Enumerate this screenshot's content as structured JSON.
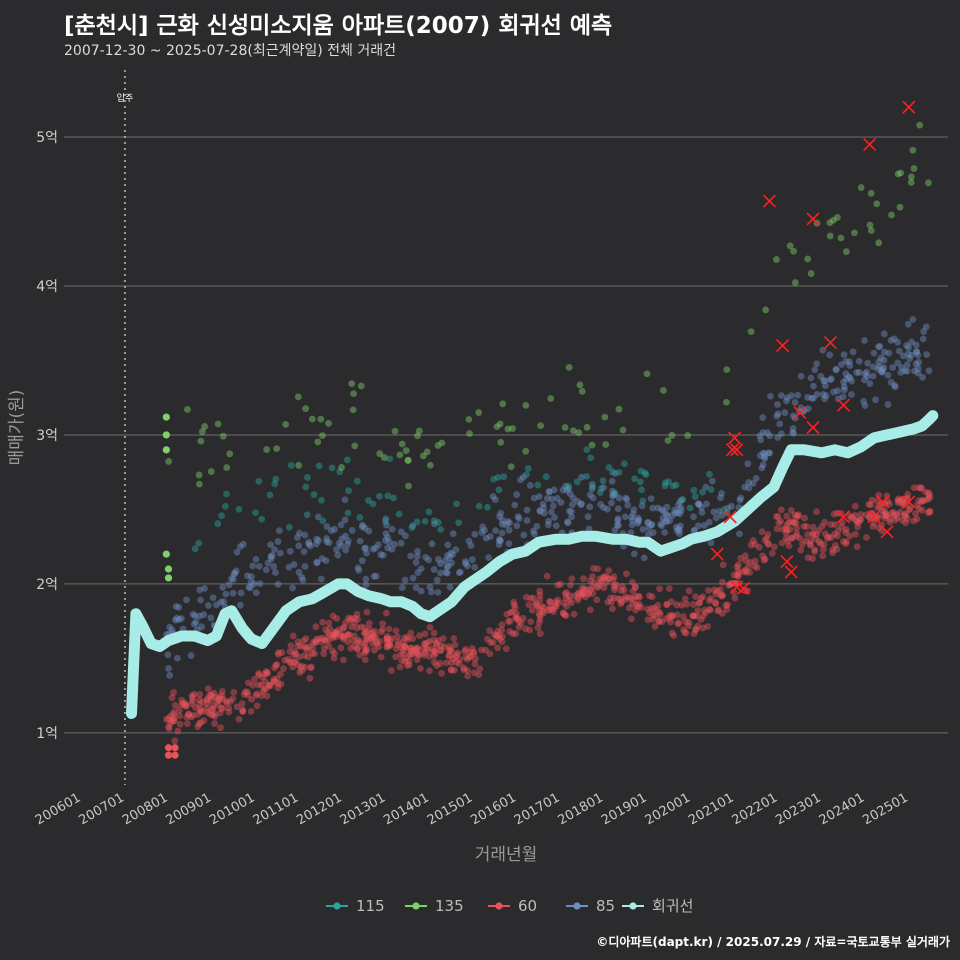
{
  "title": "[춘천시] 근화 신성미소지움 아파트(2007) 회귀선 예측",
  "subtitle": "2007-12-30 ~ 2025-07-28(최근계약일) 전체 거래건",
  "credit": "©디아파트(dapt.kr) / 2025.07.29 / 자료=국토교통부 실거래가",
  "colors": {
    "background": "#2b2b2d",
    "grid": "#6e6e6e",
    "s115": "#2aa6a0",
    "s135": "#7fd16a",
    "s60": "#e8525a",
    "s85": "#6f8fc4",
    "regression": "#a8ece8",
    "marker": "#ff2020"
  },
  "chart_data": {
    "type": "scatter",
    "title": "[춘천시] 근화 신성미소지움 아파트(2007) 회귀선 예측",
    "xlabel": "거래년월",
    "ylabel": "매매가(원)",
    "x_range": [
      2005.6,
      2025.9
    ],
    "ylim": [
      0.65,
      5.45
    ],
    "y_ticks": [
      1,
      2,
      3,
      4,
      5
    ],
    "y_tick_labels": [
      "1억",
      "2억",
      "3억",
      "4억",
      "5억"
    ],
    "x_ticks": [
      2006.0,
      2007.0,
      2008.0,
      2009.0,
      2010.0,
      2011.0,
      2012.0,
      2013.0,
      2014.0,
      2015.0,
      2016.0,
      2017.0,
      2018.0,
      2019.0,
      2020.0,
      2021.0,
      2022.0,
      2023.0,
      2024.0,
      2025.0
    ],
    "x_tick_labels": [
      "200601",
      "200701",
      "200801",
      "200901",
      "201001",
      "201101",
      "201201",
      "201301",
      "201401",
      "201501",
      "201601",
      "201701",
      "201801",
      "201901",
      "202001",
      "202101",
      "202201",
      "202301",
      "202401",
      "202501"
    ],
    "move_in": {
      "x": 2007.0,
      "label": "입주"
    },
    "legend": {
      "position": "bottom",
      "items": [
        "115",
        "135",
        "60",
        "85",
        "회귀선"
      ]
    },
    "series": [
      {
        "name": "115",
        "key": "s115",
        "anchors": [
          [
            2007.95,
            2.45
          ],
          [
            2008.5,
            2.4
          ],
          [
            2010,
            2.5
          ],
          [
            2012,
            2.7
          ],
          [
            2014,
            2.45
          ],
          [
            2016,
            2.7
          ],
          [
            2018,
            2.75
          ],
          [
            2020,
            2.7
          ],
          [
            2020.8,
            2.6
          ]
        ],
        "spread": 0.22,
        "count": 90
      },
      {
        "name": "135",
        "key": "s135",
        "anchors": [
          [
            2007.95,
            2.75
          ],
          [
            2008.6,
            2.85
          ],
          [
            2010,
            2.9
          ],
          [
            2012,
            3.05
          ],
          [
            2014,
            2.9
          ],
          [
            2016,
            3.05
          ],
          [
            2018,
            3.15
          ],
          [
            2020,
            3.1
          ],
          [
            2022,
            4.2
          ],
          [
            2024,
            4.4
          ],
          [
            2025.5,
            4.9
          ]
        ],
        "spread": 0.28,
        "count": 110
      },
      {
        "name": "60",
        "key": "s60",
        "anchors": [
          [
            2007.95,
            1.1
          ],
          [
            2008.7,
            1.15
          ],
          [
            2009.5,
            1.2
          ],
          [
            2010.5,
            1.4
          ],
          [
            2011.5,
            1.6
          ],
          [
            2012.2,
            1.7
          ],
          [
            2013,
            1.6
          ],
          [
            2014,
            1.55
          ],
          [
            2015,
            1.5
          ],
          [
            2016,
            1.75
          ],
          [
            2017,
            1.9
          ],
          [
            2018,
            2.0
          ],
          [
            2019,
            1.85
          ],
          [
            2020,
            1.75
          ],
          [
            2021,
            2.0
          ],
          [
            2022,
            2.4
          ],
          [
            2023,
            2.3
          ],
          [
            2024,
            2.45
          ],
          [
            2025.5,
            2.55
          ]
        ],
        "spread": 0.14,
        "count": 900
      },
      {
        "name": "85",
        "key": "s85",
        "anchors": [
          [
            2007.95,
            1.6
          ],
          [
            2008.7,
            1.8
          ],
          [
            2010,
            2.1
          ],
          [
            2011,
            2.15
          ],
          [
            2012,
            2.3
          ],
          [
            2013,
            2.2
          ],
          [
            2014,
            2.1
          ],
          [
            2015,
            2.2
          ],
          [
            2016,
            2.45
          ],
          [
            2017,
            2.5
          ],
          [
            2018,
            2.55
          ],
          [
            2019,
            2.4
          ],
          [
            2020,
            2.4
          ],
          [
            2021,
            2.55
          ],
          [
            2022,
            3.1
          ],
          [
            2023,
            3.4
          ],
          [
            2024,
            3.45
          ],
          [
            2025.5,
            3.55
          ]
        ],
        "spread": 0.22,
        "count": 560
      }
    ],
    "regression": {
      "name": "회귀선",
      "x": [
        2007.15,
        2007.25,
        2007.4,
        2007.6,
        2007.8,
        2008.0,
        2008.3,
        2008.6,
        2008.9,
        2009.1,
        2009.3,
        2009.45,
        2009.7,
        2009.9,
        2010.15,
        2010.4,
        2010.7,
        2011.0,
        2011.3,
        2011.6,
        2011.9,
        2012.1,
        2012.35,
        2012.6,
        2012.9,
        2013.1,
        2013.35,
        2013.6,
        2013.8,
        2014.0,
        2014.2,
        2014.5,
        2014.8,
        2015.0,
        2015.3,
        2015.6,
        2015.9,
        2016.2,
        2016.5,
        2016.9,
        2017.2,
        2017.5,
        2017.8,
        2018.2,
        2018.5,
        2018.8,
        2019.0,
        2019.3,
        2019.6,
        2019.8,
        2020.0,
        2020.3,
        2020.6,
        2021.0,
        2021.3,
        2021.6,
        2021.9,
        2022.1,
        2022.3,
        2022.6,
        2023.0,
        2023.3,
        2023.6,
        2023.9,
        2024.2,
        2024.5,
        2024.8,
        2025.1,
        2025.3,
        2025.45,
        2025.55
      ],
      "y": [
        1.13,
        1.8,
        1.72,
        1.6,
        1.58,
        1.62,
        1.65,
        1.65,
        1.62,
        1.65,
        1.8,
        1.82,
        1.7,
        1.63,
        1.6,
        1.7,
        1.82,
        1.88,
        1.9,
        1.95,
        2.0,
        2.0,
        1.95,
        1.92,
        1.9,
        1.88,
        1.88,
        1.85,
        1.8,
        1.78,
        1.82,
        1.88,
        1.98,
        2.02,
        2.08,
        2.15,
        2.2,
        2.22,
        2.28,
        2.3,
        2.3,
        2.32,
        2.32,
        2.3,
        2.3,
        2.28,
        2.28,
        2.22,
        2.25,
        2.27,
        2.3,
        2.32,
        2.35,
        2.42,
        2.5,
        2.58,
        2.65,
        2.78,
        2.9,
        2.9,
        2.88,
        2.9,
        2.88,
        2.92,
        2.98,
        3.0,
        3.02,
        3.04,
        3.06,
        3.1,
        3.13
      ]
    },
    "highlighted_x_markers": [
      [
        2020.6,
        2.2
      ],
      [
        2020.9,
        2.45
      ],
      [
        2020.95,
        2.9
      ],
      [
        2021.0,
        2.98
      ],
      [
        2021.05,
        2.9
      ],
      [
        2021.05,
        1.98
      ],
      [
        2021.2,
        1.97
      ],
      [
        2021.8,
        4.57
      ],
      [
        2022.1,
        3.6
      ],
      [
        2022.2,
        2.15
      ],
      [
        2022.3,
        2.08
      ],
      [
        2022.5,
        3.15
      ],
      [
        2022.8,
        3.05
      ],
      [
        2022.8,
        4.45
      ],
      [
        2023.2,
        3.62
      ],
      [
        2023.5,
        3.2
      ],
      [
        2023.5,
        2.45
      ],
      [
        2024.1,
        4.95
      ],
      [
        2024.2,
        2.45
      ],
      [
        2024.4,
        2.55
      ],
      [
        2024.5,
        2.35
      ],
      [
        2025.0,
        5.2
      ],
      [
        2025.0,
        2.55
      ]
    ]
  }
}
